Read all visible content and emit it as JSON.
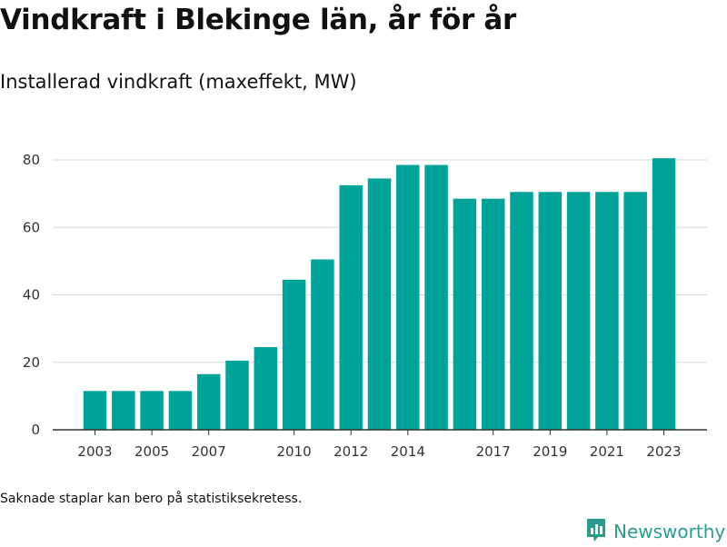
{
  "title": "Vindkraft i Blekinge län, år för år",
  "subtitle": "Installerad vindkraft (maxeffekt, MW)",
  "footnote": "Saknade staplar kan bero på statistiksekretess.",
  "brand": {
    "name": "Newsworthy",
    "icon": "bar-chart-logo-icon",
    "color": "#2a9d8f"
  },
  "chart_data": {
    "type": "bar",
    "categories": [
      "2003",
      "2004",
      "2005",
      "2006",
      "2007",
      "2008",
      "2009",
      "2010",
      "2011",
      "2012",
      "2013",
      "2014",
      "2015",
      "2016",
      "2017",
      "2018",
      "2019",
      "2020",
      "2021",
      "2022",
      "2023"
    ],
    "values": [
      11.5,
      11.5,
      11.5,
      11.5,
      16.5,
      20.5,
      24.5,
      44.5,
      50.5,
      72.5,
      74.5,
      78.5,
      78.5,
      68.5,
      68.5,
      70.5,
      70.5,
      70.5,
      70.5,
      70.5,
      80.5
    ],
    "x_tick_labels": [
      "2003",
      "2005",
      "2007",
      "2010",
      "2012",
      "2014",
      "2017",
      "2019",
      "2021",
      "2023"
    ],
    "y_ticks": [
      0,
      20,
      40,
      60,
      80
    ],
    "ylim": [
      0,
      84
    ],
    "bar_color": "#00a39a",
    "grid": true,
    "legend": "none"
  }
}
